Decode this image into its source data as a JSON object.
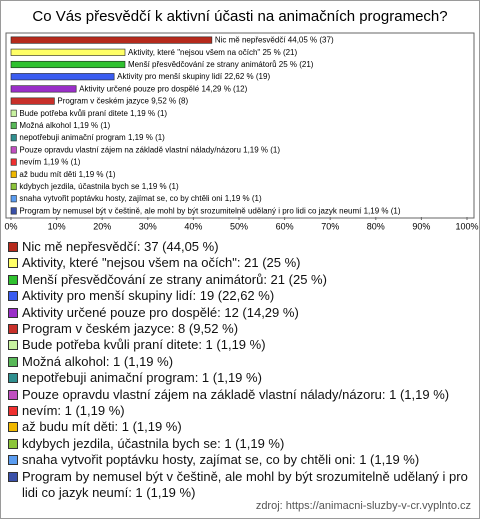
{
  "chart_data": {
    "type": "bar",
    "orientation": "horizontal",
    "title": "Co Vás přesvědčí k aktivní účasti na animačních programech?",
    "categories": [
      "Nic mě nepřesvědčí",
      "Aktivity, které \"nejsou všem na očích\"",
      "Menší přesvědčování ze strany animátorů",
      "Aktivity pro menší skupiny lidí",
      "Aktivity určené pouze pro dospělé",
      "Program v českém jazyce",
      "Bude potřeba kvůli praní ditete",
      "Možná alkohol",
      "nepotřebuji animační program",
      "Pouze opravdu vlastní zájem na základě vlastní nálady/názoru",
      "nevím",
      "až budu mít děti",
      "kdybych jezdila, účastnila bych se",
      "snaha vytvořit poptávku hosty, zajímat se, co by chtěli oni",
      "Program by nemusel být v češtině, ale mohl by být srozumitelně udělaný i pro lidi co jazyk neumí"
    ],
    "values": [
      44.05,
      25,
      25,
      22.62,
      14.29,
      9.52,
      1.19,
      1.19,
      1.19,
      1.19,
      1.19,
      1.19,
      1.19,
      1.19,
      1.19
    ],
    "value_labels": [
      "44,05 % (37)",
      "25 % (21)",
      "25 % (21)",
      "22,62 % (19)",
      "14,29 % (12)",
      "9,52 % (8)",
      "1,19 % (1)",
      "1,19 % (1)",
      "1,19 % (1)",
      "1,19 % (1)",
      "1,19 % (1)",
      "1,19 % (1)",
      "1,19 % (1)",
      "1,19 % (1)",
      "1,19 % (1)"
    ],
    "colors": [
      "#b52a1c",
      "#ffff66",
      "#2fc12f",
      "#3a5cf0",
      "#9a2fc8",
      "#c8302a",
      "#c8f2a0",
      "#58b858",
      "#2f8f8f",
      "#c04fc0",
      "#ee3030",
      "#f0b800",
      "#8cc43a",
      "#5a9cf0",
      "#3a50a8"
    ],
    "legend_labels": [
      "Nic mě nepřesvědčí: 37 (44,05 %)",
      "Aktivity, které \"nejsou všem na očích\": 21 (25 %)",
      "Menší přesvědčování ze strany animátorů: 21 (25 %)",
      "Aktivity pro menší skupiny lidí: 19 (22,62 %)",
      "Aktivity určené pouze pro dospělé: 12 (14,29 %)",
      "Program v českém jazyce: 8 (9,52 %)",
      "Bude potřeba kvůli praní ditete: 1 (1,19 %)",
      "Možná alkohol: 1 (1,19 %)",
      "nepotřebuji animační program: 1 (1,19 %)",
      "Pouze opravdu vlastní zájem na základě vlastní nálady/názoru: 1 (1,19 %)",
      "nevím: 1 (1,19 %)",
      "až budu mít děti: 1 (1,19 %)",
      "kdybych jezdila, účastnila bych se: 1 (1,19 %)",
      "snaha vytvořit poptávku hosty, zajímat se, co by chtěli oni: 1 (1,19 %)",
      "Program by nemusel být v češtině, ale mohl by být srozumitelně udělaný i pro lidi co jazyk neumí: 1 (1,19 %)"
    ],
    "xlim": [
      0,
      100
    ],
    "xticks": [
      {
        "value": 0,
        "label": "0%"
      },
      {
        "value": 10,
        "label": "10%"
      },
      {
        "value": 20,
        "label": "20%"
      },
      {
        "value": 30,
        "label": "30%"
      },
      {
        "value": 40,
        "label": "40%"
      },
      {
        "value": 50,
        "label": "50%"
      },
      {
        "value": 60,
        "label": "60%"
      },
      {
        "value": 70,
        "label": "70%"
      },
      {
        "value": 80,
        "label": "80%"
      },
      {
        "value": 90,
        "label": "90%"
      },
      {
        "value": 100,
        "label": "100%"
      }
    ],
    "source": "zdroj: https://animacni-sluzby-v-cr.vyplnto.cz"
  }
}
